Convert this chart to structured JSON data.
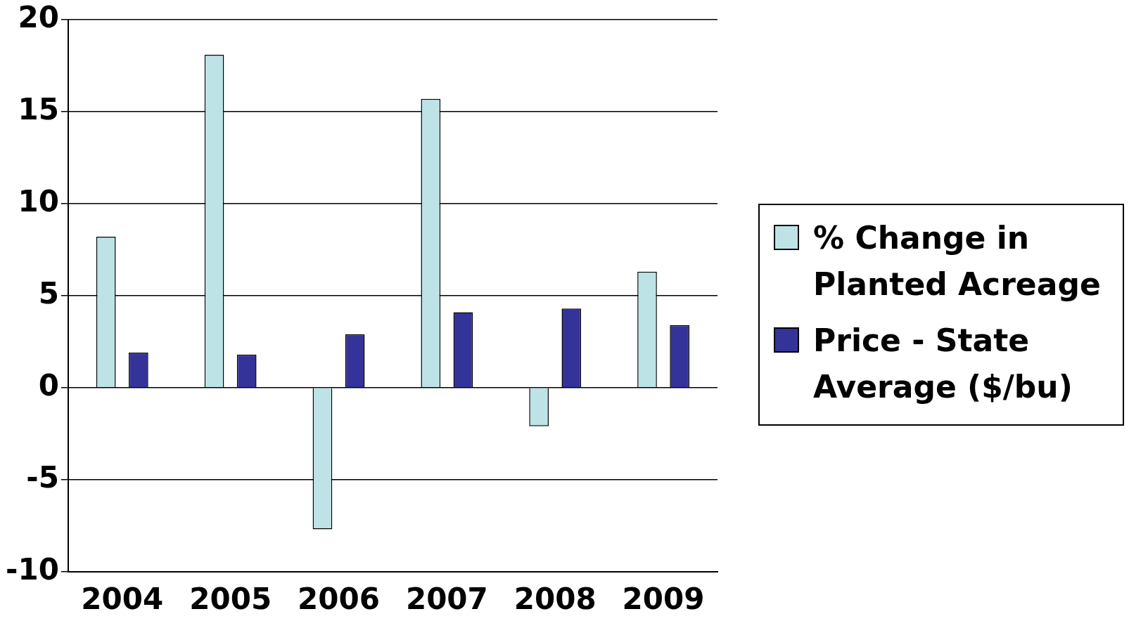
{
  "chart_data": {
    "type": "bar",
    "categories": [
      "2004",
      "2005",
      "2006",
      "2007",
      "2008",
      "2009"
    ],
    "series": [
      {
        "name": "% Change in Planted Acreage",
        "color": "#bde3e6",
        "values": [
          8.2,
          18.1,
          -7.7,
          15.7,
          -2.1,
          6.3
        ]
      },
      {
        "name": "Price - State Average ($/bu)",
        "color": "#333399",
        "values": [
          1.9,
          1.8,
          2.9,
          4.1,
          4.3,
          3.4
        ]
      }
    ],
    "ylim": [
      -10,
      20
    ],
    "yticks": [
      -10,
      -5,
      0,
      5,
      10,
      15,
      20
    ],
    "grid": "y",
    "legend": "right"
  }
}
